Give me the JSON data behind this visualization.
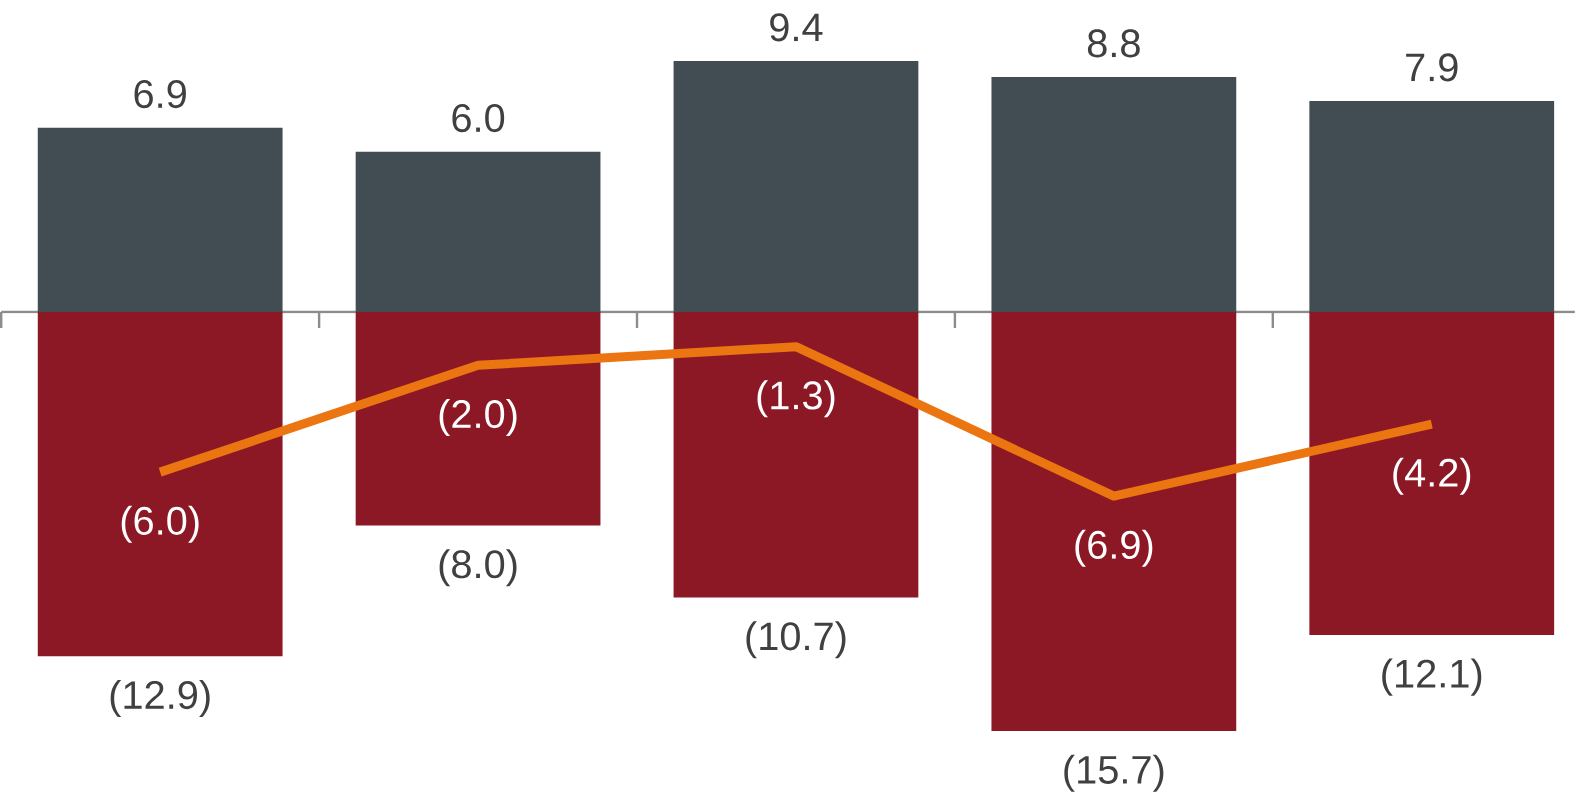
{
  "chart_data": [
    {
      "type": "bar",
      "stacked": true,
      "categories": [
        null,
        null,
        null,
        null,
        null
      ],
      "tick_labels": false,
      "series": [
        {
          "type": "bar",
          "color": "#424c53",
          "values": [
            6.9,
            6.0,
            9.4,
            8.8,
            7.9
          ],
          "value_labels": [
            "6.9",
            "6.0",
            "9.4",
            "8.8",
            "7.9"
          ]
        },
        {
          "type": "bar",
          "color": "#8c1826",
          "values": [
            -12.9,
            -8.0,
            -10.7,
            -15.7,
            -12.1
          ],
          "value_labels": [
            "(12.9)",
            "(8.0)",
            "(10.7)",
            "(15.7)",
            "(12.1)"
          ]
        }
      ]
    },
    {
      "type": "line",
      "categories": [
        null,
        null,
        null,
        null,
        null
      ],
      "tick_labels": false,
      "series": [
        {
          "color": "#eb7511",
          "values": [
            -6.0,
            -2.0,
            -1.3,
            -6.9,
            -4.2
          ],
          "value_labels": [
            "(6.0)",
            "(2.0)",
            "(1.3)",
            "(6.9)",
            "(4.2)"
          ]
        }
      ]
    }
  ]
}
